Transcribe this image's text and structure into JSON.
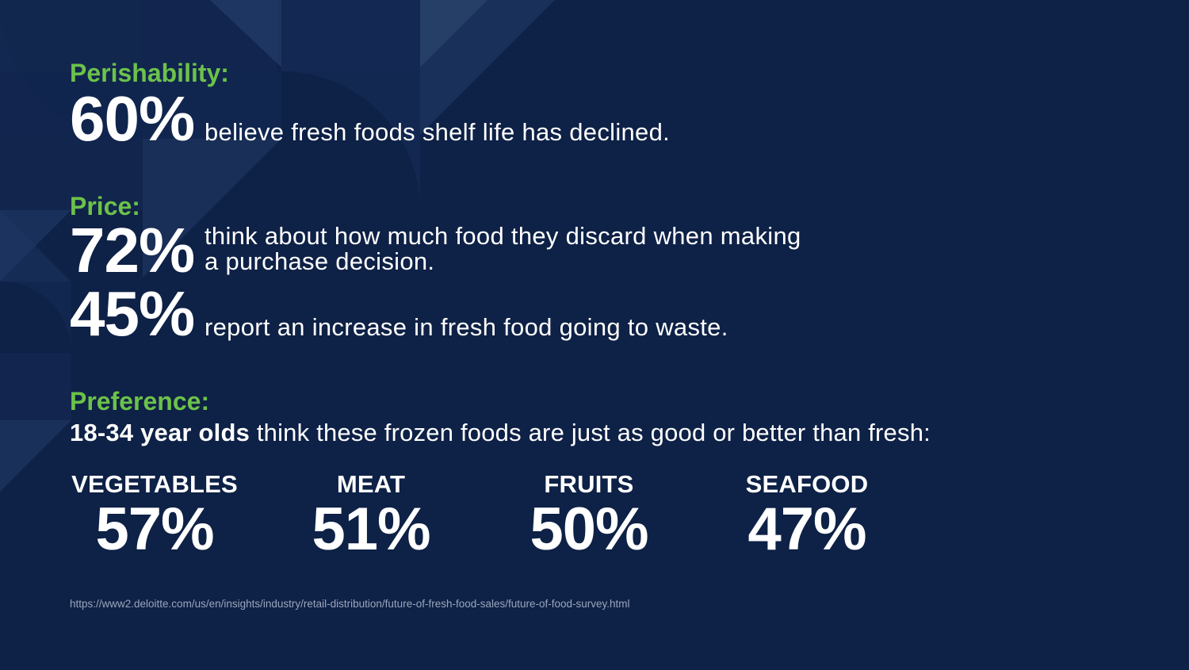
{
  "perishability": {
    "heading": "Perishability:",
    "stat": {
      "value": "60%",
      "text": "believe fresh foods shelf life has declined."
    }
  },
  "price": {
    "heading": "Price:",
    "stats": [
      {
        "value": "72%",
        "line1": "think about how much food they discard when making",
        "line2": "a purchase decision."
      },
      {
        "value": "45%",
        "text": "report an increase in fresh food going to waste."
      }
    ]
  },
  "preference": {
    "heading": "Preference:",
    "lead_bold": "18-34 year olds",
    "lead_rest": " think these frozen foods are just as good or better than fresh:",
    "categories": [
      {
        "label": "VEGETABLES",
        "value": "57%"
      },
      {
        "label": "MEAT",
        "value": "51%"
      },
      {
        "label": "FRUITS",
        "value": "50%"
      },
      {
        "label": "SEAFOOD",
        "value": "47%"
      }
    ]
  },
  "source_url": "https://www2.deloitte.com/us/en/insights/industry/retail-distribution/future-of-fresh-food-sales/future-of-food-survey.html",
  "colors": {
    "background": "#0e2146",
    "accent_green": "#6cc24a",
    "text": "#ffffff"
  }
}
